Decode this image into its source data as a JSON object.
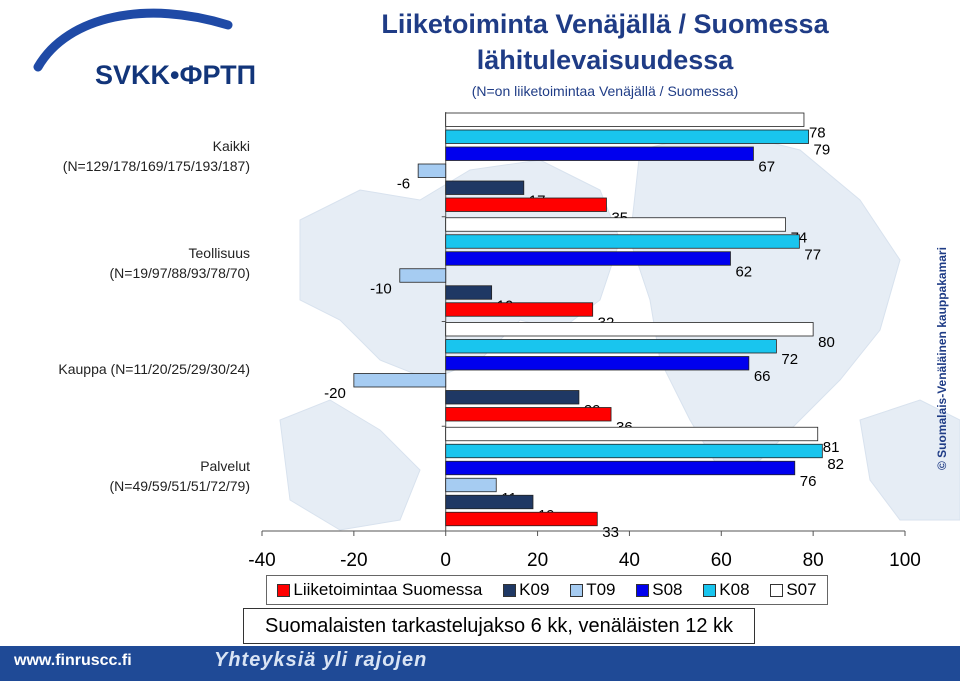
{
  "logo": {
    "text": "SVKK•ФРТП"
  },
  "header": {
    "title_line1": "Liiketoiminta Venäjällä / Suomessa",
    "title_line2": "lähitulevaisuudessa",
    "subtitle": "(N=on liiketoimintaa Venäjällä / Suomessa)"
  },
  "categories": [
    {
      "line1": "Kaikki",
      "line2": "(N=129/178/169/175/193/187)"
    },
    {
      "line1": "Teollisuus",
      "line2": "(N=19/97/88/93/78/70)"
    },
    {
      "line1": "Kauppa (N=11/20/25/29/30/24)",
      "line2": ""
    },
    {
      "line1": "Palvelut",
      "line2": "(N=49/59/51/51/72/79)"
    }
  ],
  "legend": {
    "items": [
      {
        "label": "Liiketoimintaa Suomessa",
        "color": "#ff0000"
      },
      {
        "label": "K09",
        "color": "#1f3864"
      },
      {
        "label": "T09",
        "color": "#a6ccf2"
      },
      {
        "label": "S08",
        "color": "#0000ee"
      },
      {
        "label": "K08",
        "color": "#19c5ee"
      },
      {
        "label": "S07",
        "color": "#ffffff"
      }
    ]
  },
  "note": "Suomalaisten tarkastelujakso 6 kk, venäläisten 12 kk",
  "footer": {
    "url": "www.finruscc.fi",
    "slogan": "Yhteyksiä yli rajojen"
  },
  "side_text": "© Suomalais-Venäläinen kauppakamari",
  "chart_data": {
    "type": "bar",
    "orientation": "horizontal",
    "categories": [
      "Kaikki",
      "Teollisuus",
      "Kauppa",
      "Palvelut"
    ],
    "xlim": [
      -40,
      100
    ],
    "xticks": [
      "-40",
      "-20",
      "0",
      "20",
      "40",
      "60",
      "80",
      "100"
    ],
    "series": [
      {
        "name": "S07",
        "color": "#ffffff",
        "values": [
          78,
          74,
          80,
          81
        ]
      },
      {
        "name": "K08",
        "color": "#19c5ee",
        "values": [
          79,
          77,
          72,
          82
        ]
      },
      {
        "name": "S08",
        "color": "#0000ee",
        "values": [
          67,
          62,
          66,
          76
        ]
      },
      {
        "name": "T09",
        "color": "#a6ccf2",
        "values": [
          -6,
          -10,
          -20,
          11
        ]
      },
      {
        "name": "K09",
        "color": "#1f3864",
        "values": [
          17,
          10,
          29,
          19
        ]
      },
      {
        "name": "Liiketoimintaa Suomessa",
        "color": "#ff0000",
        "values": [
          35,
          32,
          36,
          33
        ]
      }
    ]
  }
}
